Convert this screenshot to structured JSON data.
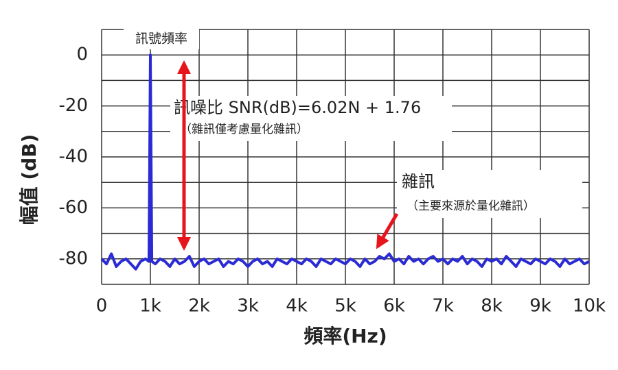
{
  "chart_data": {
    "type": "line",
    "x_label": "頻率(Hz)",
    "y_label": "幅值 (dB)",
    "color": "#2b2bd6",
    "grid": true,
    "xlim": [
      0,
      10000
    ],
    "ylim": [
      -90,
      10
    ],
    "xticks": [
      0,
      {
        "value": 1000,
        "label": "1k"
      },
      {
        "value": 2000,
        "label": "2k"
      },
      {
        "value": 3000,
        "label": "3k"
      },
      {
        "value": 4000,
        "label": "4k"
      },
      {
        "value": 5000,
        "label": "5k"
      },
      {
        "value": 6000,
        "label": "6k"
      },
      {
        "value": 7000,
        "label": "7k"
      },
      {
        "value": 8000,
        "label": "8k"
      },
      {
        "value": 9000,
        "label": "9k"
      },
      {
        "value": 10000,
        "label": "10k"
      }
    ],
    "yticks": [
      0,
      -20,
      -40,
      -60,
      -80
    ],
    "y_minor_ticks": [
      10,
      -10,
      -30,
      -50,
      -70,
      -90
    ],
    "annotations": [
      {
        "text": "訊號頻率"
      },
      {
        "text": "訊噪比 SNR(dB)=6.02N + 1.76"
      },
      {
        "text": "（雜訊僅考慮量化雜訊）"
      },
      {
        "text": "雜訊"
      },
      {
        "text": "（主要來源於量化雜訊）"
      }
    ],
    "x": [
      0,
      100,
      200,
      300,
      400,
      500,
      600,
      700,
      800,
      900,
      970,
      1000,
      1030,
      1100,
      1200,
      1300,
      1400,
      1500,
      1600,
      1700,
      1800,
      1900,
      2000,
      2100,
      2200,
      2300,
      2400,
      2500,
      2600,
      2700,
      2800,
      2900,
      3000,
      3100,
      3200,
      3300,
      3400,
      3500,
      3600,
      3700,
      3800,
      3900,
      4000,
      4100,
      4200,
      4300,
      4400,
      4500,
      4600,
      4700,
      4800,
      4900,
      5000,
      5100,
      5200,
      5300,
      5400,
      5500,
      5600,
      5700,
      5800,
      5900,
      6000,
      6100,
      6200,
      6300,
      6400,
      6500,
      6600,
      6700,
      6800,
      6900,
      7000,
      7100,
      7200,
      7300,
      7400,
      7500,
      7600,
      7700,
      7800,
      7900,
      8000,
      8100,
      8200,
      8300,
      8400,
      8500,
      8600,
      8700,
      8800,
      8900,
      9000,
      9100,
      9200,
      9300,
      9400,
      9500,
      9600,
      9700,
      9800,
      9900,
      10000
    ],
    "values": [
      -80,
      -82,
      -78,
      -83,
      -81,
      -80,
      -82,
      -84,
      -81,
      -80,
      -81,
      0,
      -81,
      -82,
      -80,
      -81,
      -83,
      -80,
      -82,
      -81,
      -79,
      -83,
      -81,
      -80,
      -82,
      -81,
      -80,
      -83,
      -81,
      -82,
      -80,
      -81,
      -83,
      -81,
      -80,
      -82,
      -81,
      -83,
      -80,
      -81,
      -82,
      -80,
      -81,
      -82,
      -80,
      -81,
      -83,
      -80,
      -81,
      -82,
      -80,
      -81,
      -82,
      -80,
      -81,
      -83,
      -80,
      -82,
      -81,
      -79,
      -80,
      -78,
      -81,
      -80,
      -82,
      -79,
      -81,
      -80,
      -82,
      -80,
      -79,
      -81,
      -80,
      -82,
      -80,
      -81,
      -79,
      -82,
      -80,
      -81,
      -83,
      -80,
      -81,
      -80,
      -82,
      -79,
      -81,
      -83,
      -80,
      -81,
      -82,
      -80,
      -81,
      -82,
      -80,
      -81,
      -83,
      -80,
      -82,
      -81,
      -80,
      -82,
      -81
    ]
  }
}
